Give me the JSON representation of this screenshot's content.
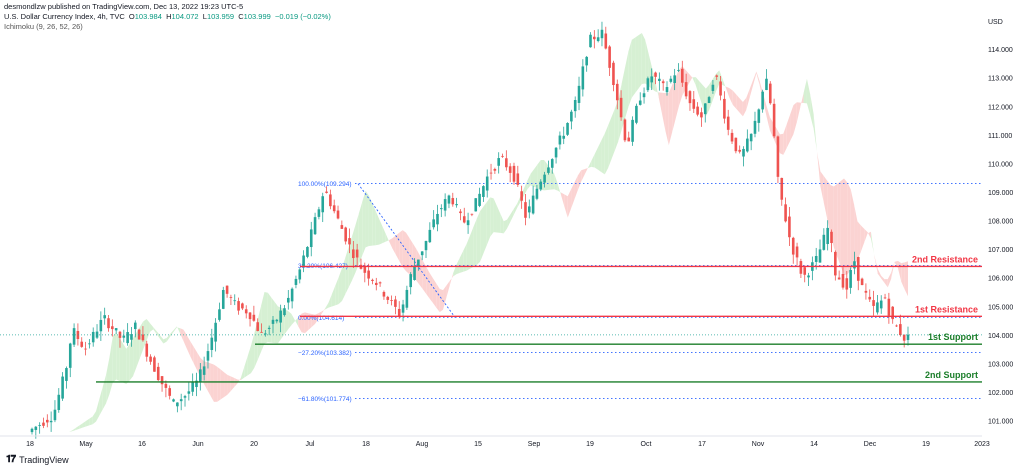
{
  "header": {
    "publisher": "desmondlzw published on TradingView.com, Dec 13, 2022 19:23 UTC-5",
    "symbol": "U.S. Dollar Currency Index, 4h, TVC",
    "ohlc": {
      "open_label": "O",
      "open": "103.984",
      "high_label": "H",
      "high": "104.072",
      "low_label": "L",
      "low": "103.959",
      "close_label": "C",
      "close": "103.999",
      "change": "−0.019 (−0.02%)"
    },
    "indicator": "Ichimoku (9, 26, 52, 26)"
  },
  "footer": {
    "brand": "TradingView"
  },
  "colors": {
    "resistance": "#f23645",
    "support": "#1b7e2a",
    "fib": "#2962ff",
    "cloud_bull": "#d6f0d3",
    "cloud_bear": "#fbd3d2",
    "bull": "#26a69a",
    "bear": "#ef5350"
  },
  "chart_data": {
    "type": "candlestick",
    "currency": "USD",
    "ylim": [
      100.6,
      115.3
    ],
    "y_ticks": [
      "114.000",
      "113.000",
      "112.000",
      "111.000",
      "110.000",
      "109.000",
      "108.000",
      "107.000",
      "106.000",
      "105.000",
      "104.000",
      "103.000",
      "102.000",
      "101.000"
    ],
    "x_ticks": [
      "18",
      "May",
      "16",
      "Jun",
      "20",
      "Jul",
      "18",
      "Aug",
      "15",
      "Sep",
      "19",
      "Oct",
      "17",
      "Nov",
      "14",
      "Dec",
      "19",
      "2023"
    ],
    "price_path": [
      [
        0,
        100.6
      ],
      [
        4,
        101.2
      ],
      [
        6,
        102.8
      ],
      [
        7,
        104.2
      ],
      [
        9,
        103.5
      ],
      [
        12,
        104.6
      ],
      [
        15,
        103.8
      ],
      [
        17,
        104.3
      ],
      [
        19,
        103.3
      ],
      [
        21,
        102.4
      ],
      [
        23,
        101.6
      ],
      [
        25,
        101.9
      ],
      [
        27,
        102.4
      ],
      [
        29,
        103.8
      ],
      [
        31,
        105.6
      ],
      [
        33,
        105.0
      ],
      [
        35,
        104.8
      ],
      [
        37,
        104.0
      ],
      [
        39,
        104.4
      ],
      [
        41,
        105.1
      ],
      [
        43,
        106.2
      ],
      [
        45,
        107.6
      ],
      [
        47,
        109.1
      ],
      [
        49,
        108.1
      ],
      [
        51,
        107.1
      ],
      [
        53,
        106.3
      ],
      [
        55,
        105.9
      ],
      [
        57,
        105.3
      ],
      [
        59,
        104.7
      ],
      [
        61,
        106.3
      ],
      [
        63,
        107.2
      ],
      [
        65,
        108.3
      ],
      [
        67,
        108.9
      ],
      [
        69,
        107.9
      ],
      [
        71,
        108.6
      ],
      [
        73,
        109.6
      ],
      [
        75,
        110.2
      ],
      [
        77,
        109.6
      ],
      [
        79,
        108.1
      ],
      [
        81,
        109.3
      ],
      [
        83,
        110.2
      ],
      [
        85,
        111.1
      ],
      [
        87,
        112.2
      ],
      [
        89,
        114.3
      ],
      [
        91,
        114.6
      ],
      [
        93,
        112.8
      ],
      [
        95,
        110.6
      ],
      [
        97,
        112.3
      ],
      [
        99,
        113.1
      ],
      [
        101,
        112.6
      ],
      [
        103,
        113.3
      ],
      [
        105,
        112.1
      ],
      [
        107,
        111.6
      ],
      [
        109,
        113.2
      ],
      [
        111,
        111.2
      ],
      [
        113,
        110.2
      ],
      [
        115,
        111.1
      ],
      [
        117,
        113.0
      ],
      [
        118,
        111.8
      ],
      [
        119,
        109.3
      ],
      [
        121,
        107.2
      ],
      [
        123,
        106.0
      ],
      [
        125,
        106.6
      ],
      [
        127,
        107.8
      ],
      [
        128,
        106.2
      ],
      [
        130,
        105.6
      ],
      [
        131,
        106.7
      ],
      [
        132,
        105.8
      ],
      [
        134,
        104.9
      ],
      [
        136,
        105.3
      ],
      [
        137,
        104.5
      ],
      [
        138,
        104.2
      ],
      [
        139,
        103.9
      ]
    ],
    "levels": [
      {
        "name": "2nd Resistance",
        "value": "106.396",
        "kind": "resistance"
      },
      {
        "name": "1st Resistance",
        "value": "104.648",
        "kind": "resistance"
      },
      {
        "name": "1st Support",
        "value": "103.673",
        "kind": "support"
      },
      {
        "name": "2nd Support",
        "value": "102.352",
        "kind": "support"
      }
    ],
    "current_price": "103.999",
    "fib_levels": [
      {
        "label": "100.00%(109.294)",
        "value": 109.294
      },
      {
        "label": "38.20%(106.427)",
        "value": 106.427
      },
      {
        "label": "0.00%(104.614)",
        "value": 104.614
      },
      {
        "label": "−27.20%(103.382)",
        "value": 103.382
      },
      {
        "label": "−61.80%(101.774)",
        "value": 101.774
      }
    ]
  }
}
